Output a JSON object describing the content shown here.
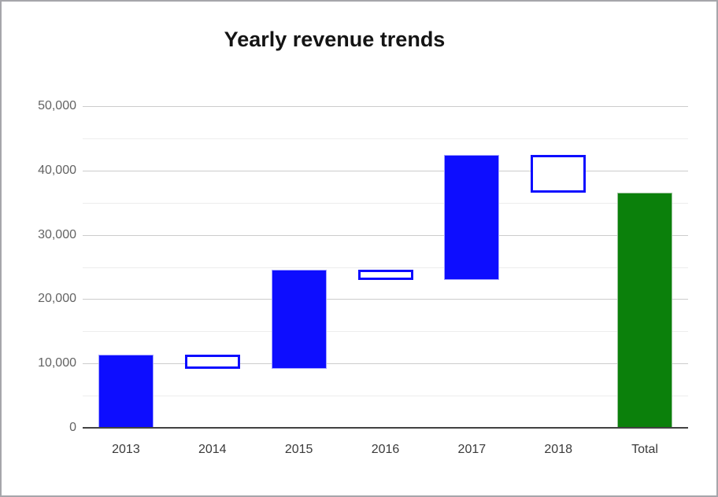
{
  "window": {
    "background": "#ffffff",
    "border_color": "#a6a6ab"
  },
  "chart_data": {
    "type": "waterfall",
    "title": "Yearly revenue trends",
    "categories": [
      "2013",
      "2014",
      "2015",
      "2016",
      "2017",
      "2018",
      "Total"
    ],
    "steps": [
      {
        "label": "2013",
        "start": 0,
        "end": 11400,
        "delta": 11400,
        "kind": "increase",
        "style": "solid-blue"
      },
      {
        "label": "2014",
        "start": 11400,
        "end": 9200,
        "delta": -2200,
        "kind": "decrease",
        "style": "hollow-blue"
      },
      {
        "label": "2015",
        "start": 9200,
        "end": 24600,
        "delta": 15400,
        "kind": "increase",
        "style": "solid-blue"
      },
      {
        "label": "2016",
        "start": 24600,
        "end": 23000,
        "delta": -1600,
        "kind": "decrease",
        "style": "hollow-blue"
      },
      {
        "label": "2017",
        "start": 23000,
        "end": 42400,
        "delta": 19400,
        "kind": "increase",
        "style": "solid-blue"
      },
      {
        "label": "2018",
        "start": 42400,
        "end": 36500,
        "delta": -5900,
        "kind": "decrease",
        "style": "hollow-blue"
      },
      {
        "label": "Total",
        "start": 0,
        "end": 36500,
        "delta": 36500,
        "kind": "total",
        "style": "solid-green"
      }
    ],
    "y_axis": {
      "min": 0,
      "max": 50000,
      "major_step": 10000,
      "minor_step": 5000,
      "tick_labels": [
        "0",
        "10,000",
        "20,000",
        "30,000",
        "40,000",
        "50,000"
      ]
    },
    "grid": true,
    "legend": "none",
    "colors": {
      "increase_fill": "#0d0dff",
      "increase_edge": "#a3a3ff",
      "decrease_stroke": "#0d0dff",
      "total_fill": "#0b800b",
      "total_edge": "#9dc49d",
      "major_grid": "#cccccc",
      "minor_grid": "#ededed",
      "axis_line": "#424242",
      "y_label_color": "#636363",
      "x_label_color": "#3a3a3a",
      "title_color": "#141414"
    }
  }
}
